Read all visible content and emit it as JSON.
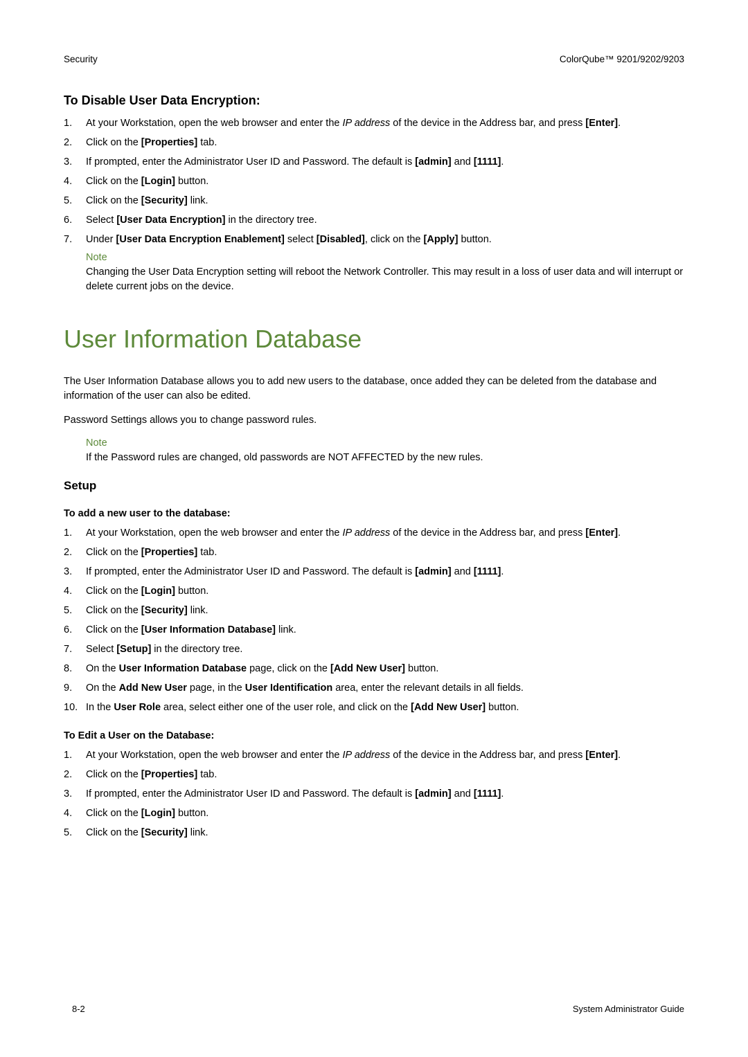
{
  "header": {
    "left": "Security",
    "right": "ColorQube™ 9201/9202/9203"
  },
  "section1": {
    "heading": "To Disable User Data Encryption:",
    "items": [
      {
        "n": "1.",
        "pre": "At your Workstation, open the web browser and enter the ",
        "italic": "IP address",
        "mid": " of the device in the Address bar, and press ",
        "b1": "[Enter]",
        "post": "."
      },
      {
        "n": "2.",
        "pre": "Click on the ",
        "b1": "[Properties]",
        "post": " tab."
      },
      {
        "n": "3.",
        "pre": "If prompted, enter the Administrator User ID and Password. The default is ",
        "b1": "[admin]",
        "mid": " and ",
        "b2": "[1111]",
        "post": "."
      },
      {
        "n": "4.",
        "pre": "Click on the ",
        "b1": "[Login]",
        "post": " button."
      },
      {
        "n": "5.",
        "pre": "Click on the ",
        "b1": "[Security]",
        "post": " link."
      },
      {
        "n": "6.",
        "pre": "Select ",
        "b1": "[User Data Encryption]",
        "post": " in the directory tree."
      },
      {
        "n": "7.",
        "pre": "Under ",
        "b1": "[User Data Encryption Enablement]",
        "mid": " select ",
        "b2": "[Disabled]",
        "mid2": ", click on the ",
        "b3": "[Apply]",
        "post": " button."
      }
    ],
    "noteLabel": "Note",
    "noteBody": "Changing the User Data Encryption setting will reboot the Network Controller. This may result in a loss of user data and will interrupt or delete current jobs on the device."
  },
  "mainTitle": "User Information Database",
  "intro1": "The User Information Database allows you to add new users to the database, once added they can be deleted from the database and information of the user can also be edited.",
  "intro2": "Password Settings allows you to change password rules.",
  "note2Label": "Note",
  "note2Body": "If the Password rules are changed, old passwords are NOT AFFECTED by the new rules.",
  "setupHeading": "Setup",
  "sub1": {
    "heading": "To add a new user to the database:",
    "items": [
      {
        "n": "1.",
        "pre": "At your Workstation, open the web browser and enter the ",
        "italic": "IP address",
        "mid": " of the device in the Address bar, and press ",
        "b1": "[Enter]",
        "post": "."
      },
      {
        "n": "2.",
        "pre": "Click on the ",
        "b1": "[Properties]",
        "post": " tab."
      },
      {
        "n": "3.",
        "pre": "If prompted, enter the Administrator User ID and Password. The default is ",
        "b1": "[admin]",
        "mid": " and ",
        "b2": "[1111]",
        "post": "."
      },
      {
        "n": "4.",
        "pre": "Click on the ",
        "b1": "[Login]",
        "post": " button."
      },
      {
        "n": "5.",
        "pre": "Click on the ",
        "b1": "[Security]",
        "post": " link."
      },
      {
        "n": "6.",
        "pre": "Click on the ",
        "b1": "[User Information Database]",
        "post": " link."
      },
      {
        "n": "7.",
        "pre": "Select ",
        "b1": "[Setup]",
        "post": " in the directory tree."
      },
      {
        "n": "8.",
        "pre": "On the ",
        "b1": "User Information Database",
        "mid": " page, click on the ",
        "b2": "[Add New User]",
        "post": " button."
      },
      {
        "n": "9.",
        "pre": "On the ",
        "b1": "Add New User",
        "mid": " page, in the ",
        "b2": "User Identification",
        "post": " area, enter the relevant details in all fields."
      },
      {
        "n": "10.",
        "pre": "In the ",
        "b1": "User Role",
        "mid": " area, select either one of the user role, and click on the ",
        "b2": "[Add New User]",
        "post": " button."
      }
    ]
  },
  "sub2": {
    "heading": "To Edit a User on the Database:",
    "items": [
      {
        "n": "1.",
        "pre": "At your Workstation, open the web browser and enter the ",
        "italic": "IP address",
        "mid": " of the device in the Address bar, and press ",
        "b1": "[Enter]",
        "post": "."
      },
      {
        "n": "2.",
        "pre": "Click on the ",
        "b1": "[Properties]",
        "post": " tab."
      },
      {
        "n": "3.",
        "pre": "If prompted, enter the Administrator User ID and Password. The default is ",
        "b1": "[admin]",
        "mid": " and ",
        "b2": "[1111]",
        "post": "."
      },
      {
        "n": "4.",
        "pre": "Click on the ",
        "b1": "[Login]",
        "post": " button."
      },
      {
        "n": "5.",
        "pre": "Click on the ",
        "b1": "[Security]",
        "post": " link."
      }
    ]
  },
  "footer": {
    "left": "8-2",
    "right": "System Administrator Guide"
  }
}
